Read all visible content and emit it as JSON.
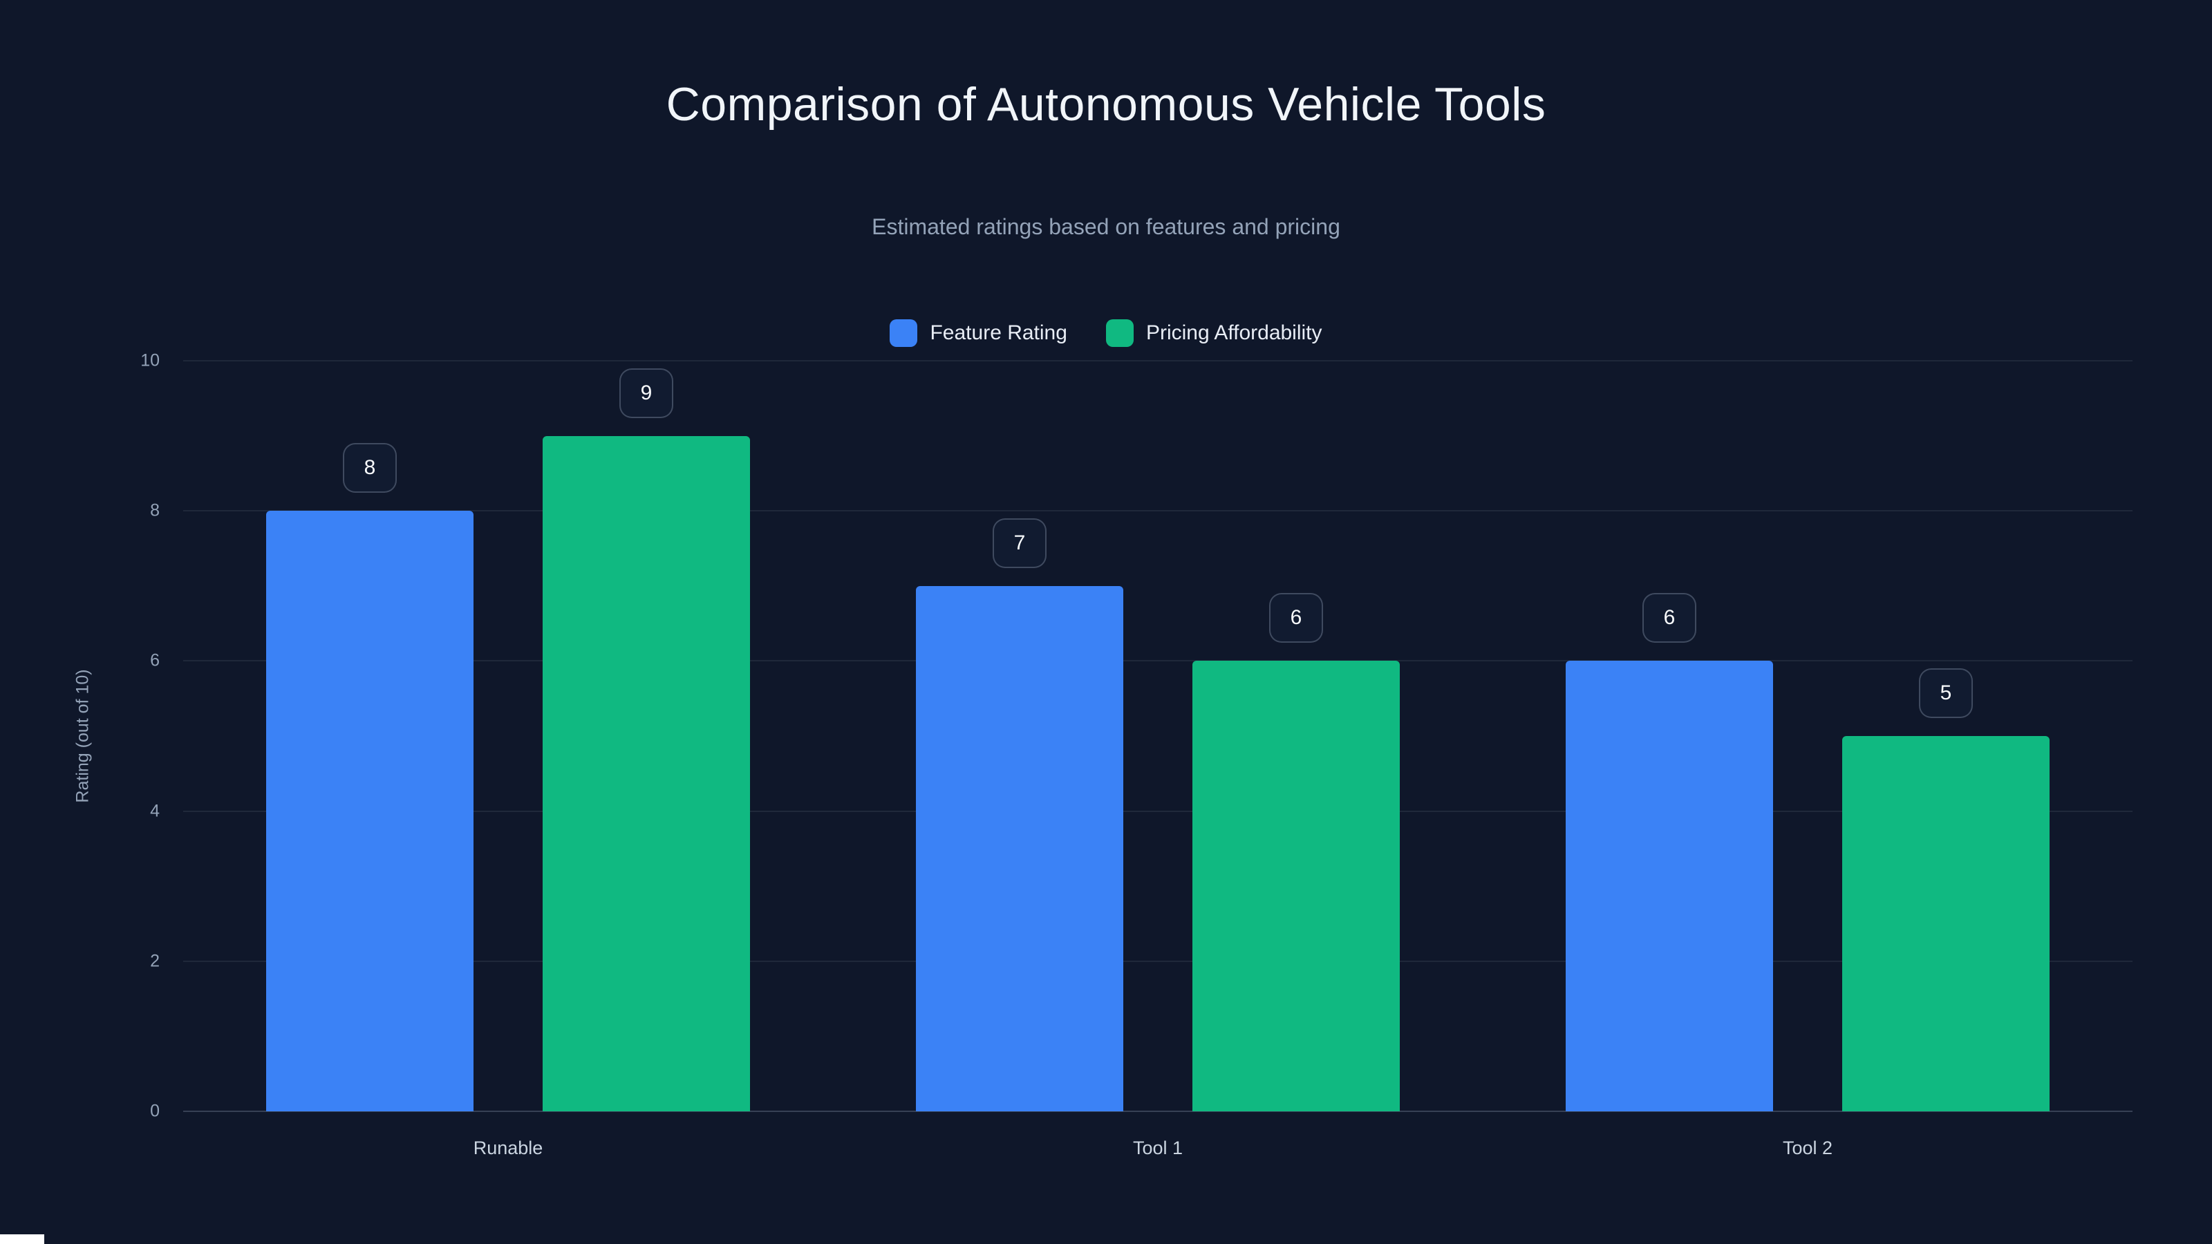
{
  "page": {
    "background": "#0f172a"
  },
  "chart_data": {
    "type": "bar",
    "title": "Comparison of Autonomous Vehicle Tools",
    "subtitle": "Estimated ratings based on features and pricing",
    "categories": [
      "Runable",
      "Tool 1",
      "Tool 2"
    ],
    "series": [
      {
        "name": "Feature Rating",
        "color": "#3b82f6",
        "values": [
          8,
          7,
          6
        ]
      },
      {
        "name": "Pricing Affordability",
        "color": "#10b981",
        "values": [
          9,
          6,
          5
        ]
      }
    ],
    "ylabel": "Rating (out of 10)",
    "ylim": [
      0,
      10
    ],
    "yticks": [
      0,
      2,
      4,
      6,
      8,
      10
    ],
    "grid": true,
    "legend_position": "top",
    "data_labels": true
  }
}
